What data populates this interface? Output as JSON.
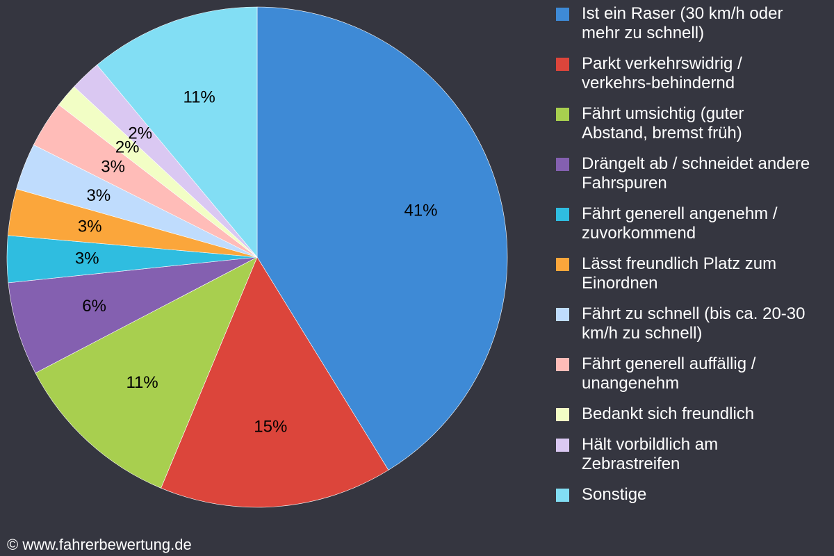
{
  "chart_data": {
    "type": "pie",
    "slices": [
      {
        "label": "Ist ein Raser (30 km/h oder mehr zu schnell)",
        "value": 41,
        "value_label": "41%",
        "color": "#3e8ad6"
      },
      {
        "label": "Parkt verkehrswidrig / verkehrs-behindernd",
        "value": 15,
        "value_label": "15%",
        "color": "#dc453b"
      },
      {
        "label": "Fährt umsichtig (guter Abstand, bremst früh)",
        "value": 11,
        "value_label": "11%",
        "color": "#a8cf4f"
      },
      {
        "label": "Drängelt ab / schneidet andere Fahrspuren",
        "value": 6,
        "value_label": "6%",
        "color": "#8460b0"
      },
      {
        "label": "Fährt generell angenehm / zuvorkommend",
        "value": 3,
        "value_label": "3%",
        "color": "#2fbde0"
      },
      {
        "label": "Lässt freundlich Platz zum Einordnen",
        "value": 3,
        "value_label": "3%",
        "color": "#fba63b"
      },
      {
        "label": "Fährt zu schnell (bis ca. 20-30 km/h zu schnell)",
        "value": 3,
        "value_label": "3%",
        "color": "#bfdcfd"
      },
      {
        "label": "Fährt generell auffällig / unangenehm",
        "value": 3,
        "value_label": "3%",
        "color": "#ffbcb8"
      },
      {
        "label": "Bedankt sich freundlich",
        "value": 1.5,
        "value_label": "2%",
        "color": "#f2fec5"
      },
      {
        "label": "Hält vorbildlich am Zebrastreifen",
        "value": 2,
        "value_label": "2%",
        "color": "#dac8f2"
      },
      {
        "label": "Sonstige",
        "value": 11,
        "value_label": "11%",
        "color": "#82def4"
      }
    ],
    "legend_position": "right",
    "start_angle": "top",
    "direction": "clockwise"
  },
  "legend": {
    "items": [
      {
        "line1": "Ist ein Raser (30 km/h oder",
        "line2": "mehr zu schnell)"
      },
      {
        "line1": "Parkt verkehrswidrig /",
        "line2": "verkehrs-behindernd"
      },
      {
        "line1": "Fährt umsichtig (guter",
        "line2": "Abstand, bremst früh)"
      },
      {
        "line1": "Drängelt ab / schneidet andere",
        "line2": "Fahrspuren"
      },
      {
        "line1": "Fährt generell angenehm /",
        "line2": "zuvorkommend"
      },
      {
        "line1": "Lässt freundlich Platz zum",
        "line2": "Einordnen"
      },
      {
        "line1": "Fährt zu schnell (bis ca. 20-30",
        "line2": "km/h zu schnell)"
      },
      {
        "line1": "Fährt generell auffällig /",
        "line2": "unangenehm"
      },
      {
        "line1": "Bedankt sich freundlich",
        "line2": ""
      },
      {
        "line1": "Hält vorbildlich am",
        "line2": "Zebrastreifen"
      },
      {
        "line1": "Sonstige",
        "line2": ""
      }
    ]
  },
  "footer": {
    "copyright": "© www.fahrerbewertung.de"
  },
  "colors": {
    "background": "#353640",
    "text": "#ffffff",
    "slice_border": "#ffffff"
  }
}
